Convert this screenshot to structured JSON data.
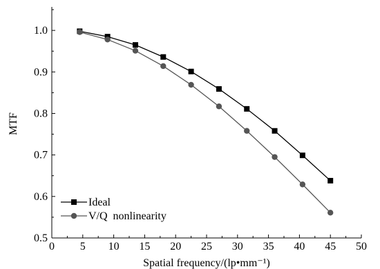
{
  "chart_data": {
    "type": "line",
    "xlabel": "Spatial frequency/(lp•mm⁻¹)",
    "ylabel": "MTF",
    "xlim": [
      0,
      50
    ],
    "ylim": [
      0.5,
      1.05
    ],
    "xticks": [
      "0",
      "5",
      "10",
      "15",
      "20",
      "25",
      "30",
      "35",
      "40",
      "45",
      "50"
    ],
    "yticks": [
      "0.5",
      "0.6",
      "0.7",
      "0.8",
      "0.9",
      "1.0"
    ],
    "grid": false,
    "legend_position": "bottom-left",
    "x": [
      4.5,
      9,
      13.5,
      18,
      22.5,
      27,
      31.5,
      36,
      40.5,
      45
    ],
    "series": [
      {
        "name": "Ideal",
        "marker": "square",
        "color": "#000000",
        "values": [
          0.998,
          0.985,
          0.965,
          0.936,
          0.901,
          0.859,
          0.811,
          0.758,
          0.699,
          0.638
        ]
      },
      {
        "name": "V/Q  nonlinearity",
        "marker": "circle",
        "color": "#555555",
        "values": [
          0.996,
          0.978,
          0.951,
          0.914,
          0.869,
          0.817,
          0.758,
          0.695,
          0.629,
          0.561
        ]
      }
    ]
  }
}
